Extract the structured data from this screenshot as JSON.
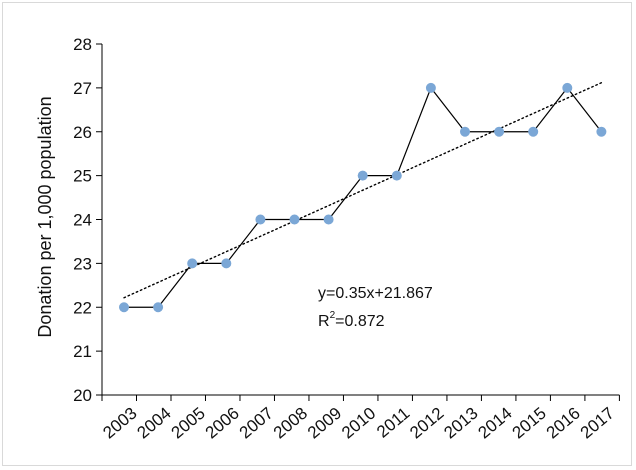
{
  "chart_data": {
    "type": "line",
    "title": "",
    "xlabel": "",
    "ylabel": "Donation per 1,000 population",
    "categories": [
      "2003",
      "2004",
      "2005",
      "2006",
      "2007",
      "2008",
      "2009",
      "2010",
      "2011",
      "2012",
      "2013",
      "2014",
      "2015",
      "2016",
      "2017"
    ],
    "series": [
      {
        "values": [
          22,
          22,
          23,
          23,
          24,
          24,
          24,
          25,
          25,
          27,
          26,
          26,
          26,
          27,
          26
        ],
        "color": "#000000",
        "marker_color": "#7ba7d6"
      }
    ],
    "trendline": {
      "slope": 0.35,
      "intercept": 21.867,
      "style": "dotted",
      "color": "#000000"
    },
    "annotation": {
      "equation": "y=0.35x+21.867",
      "r2_prefix": "R",
      "r2_exp": "2",
      "r2_value": "=0.872"
    },
    "ylim": [
      20,
      28
    ],
    "yticks": [
      20,
      21,
      22,
      23,
      24,
      25,
      26,
      27,
      28
    ],
    "grid": false,
    "legend": "none"
  }
}
